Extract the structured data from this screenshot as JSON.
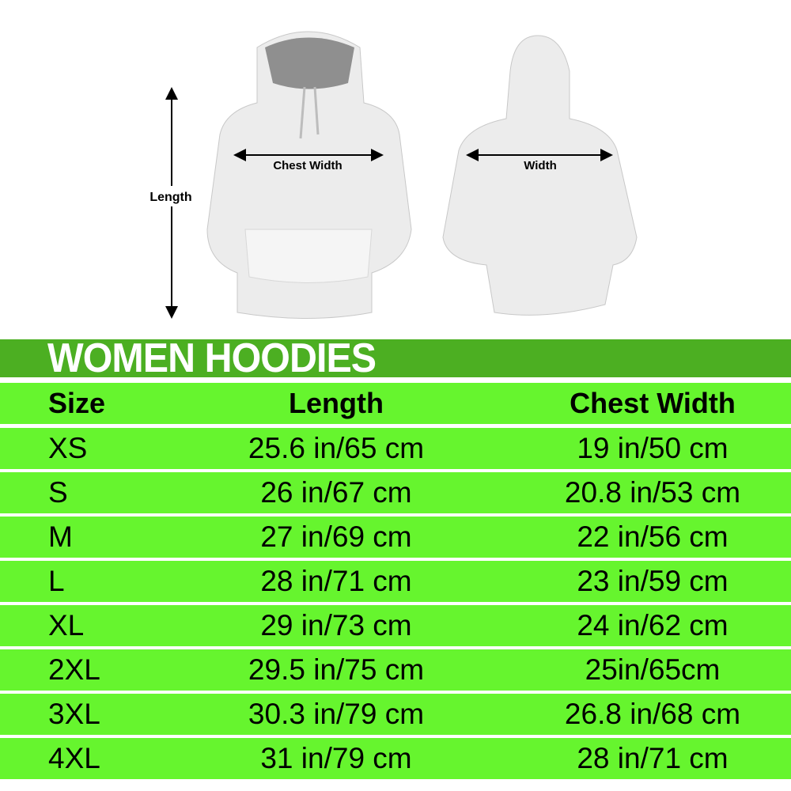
{
  "illustration": {
    "front_labels": {
      "length": "Length",
      "chest_width": "Chest Width"
    },
    "back_labels": {
      "width": "Width"
    }
  },
  "title": "WOMEN HOODIES",
  "colors": {
    "title_band": "#4caf22",
    "row": "#66f52e",
    "title_text": "#ffffff"
  },
  "table": {
    "headers": [
      "Size",
      "Length",
      "Chest Width"
    ],
    "rows": [
      [
        "XS",
        "25.6 in/65 cm",
        "19 in/50 cm"
      ],
      [
        "S",
        "26 in/67 cm",
        "20.8 in/53 cm"
      ],
      [
        "M",
        "27 in/69 cm",
        "22 in/56 cm"
      ],
      [
        "L",
        "28 in/71 cm",
        "23 in/59 cm"
      ],
      [
        "XL",
        "29 in/73 cm",
        "24 in/62 cm"
      ],
      [
        "2XL",
        "29.5 in/75 cm",
        "25in/65cm"
      ],
      [
        "3XL",
        "30.3 in/79 cm",
        "26.8 in/68 cm"
      ],
      [
        "4XL",
        "31 in/79 cm",
        "28 in/71 cm"
      ]
    ]
  }
}
